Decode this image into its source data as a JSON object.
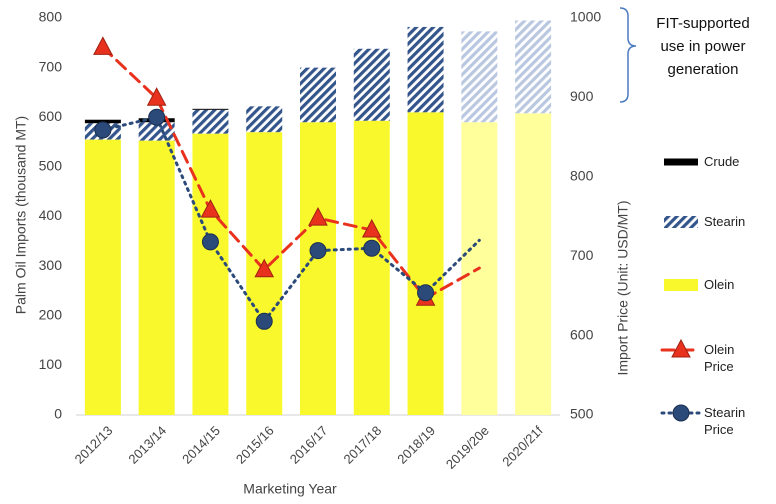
{
  "chart_data": {
    "type": "bar",
    "stacked": true,
    "categories": [
      "2012/13",
      "2013/14",
      "2014/15",
      "2015/16",
      "2016/17",
      "2017/18",
      "2018/19",
      "2019/20e",
      "2020/21f"
    ],
    "x_label": "Marketing Year",
    "y_label": "Palm Oil Imports (thousand MT)",
    "y2_label": "Import Price (Unit: USD/MT)",
    "ylim": [
      0,
      800
    ],
    "yticks": [
      0,
      100,
      200,
      300,
      400,
      500,
      600,
      700,
      800
    ],
    "y2lim": [
      500,
      1000
    ],
    "y2ticks": [
      500,
      600,
      700,
      800,
      900,
      1000
    ],
    "annotation": "FIT-supported use in power generation",
    "series": [
      {
        "name": "Crude",
        "type": "bar",
        "color": "#000000",
        "colors": [
          "#000000",
          "#000000",
          "#000000",
          "#000000",
          "#000000",
          "#000000",
          "#000000",
          "#000000",
          "#000000"
        ],
        "values": [
          7,
          8,
          2,
          0,
          0,
          0,
          0,
          0,
          0
        ]
      },
      {
        "name": "Stearin",
        "type": "bar",
        "pattern": "hatch",
        "color": "#34558b",
        "colors": [
          "#34558b",
          "#34558b",
          "#34558b",
          "#34558b",
          "#34558b",
          "#34558b",
          "#34558b",
          "#b9c8e0",
          "#b9c8e0"
        ],
        "values": [
          33,
          37,
          48,
          52,
          110,
          145,
          172,
          183,
          187
        ]
      },
      {
        "name": "Olein",
        "type": "bar",
        "color": "#f8f82c",
        "colors": [
          "#f8f82c",
          "#f8f82c",
          "#f8f82c",
          "#f8f82c",
          "#f8f82c",
          "#f8f82c",
          "#f8f82c",
          "#ffff9c",
          "#ffff9c"
        ],
        "values": [
          555,
          553,
          567,
          570,
          590,
          593,
          610,
          590,
          608
        ]
      },
      {
        "name": "Olein Price",
        "type": "line",
        "axis": "y2",
        "color": "#e8321e",
        "dash": "12 7",
        "marker": "triangle",
        "markers": [
          true,
          true,
          true,
          true,
          true,
          true,
          true,
          false,
          false
        ],
        "values": [
          963,
          899,
          758,
          683,
          748,
          733,
          647,
          685,
          null
        ]
      },
      {
        "name": "Stearin Price",
        "type": "line",
        "axis": "y2",
        "color": "#2b4a7a",
        "dash": "2 5",
        "marker": "circle",
        "markers": [
          true,
          true,
          true,
          true,
          true,
          true,
          true,
          false,
          false
        ],
        "values": [
          859,
          875,
          718,
          618,
          707,
          710,
          654,
          720,
          null
        ]
      }
    ]
  }
}
